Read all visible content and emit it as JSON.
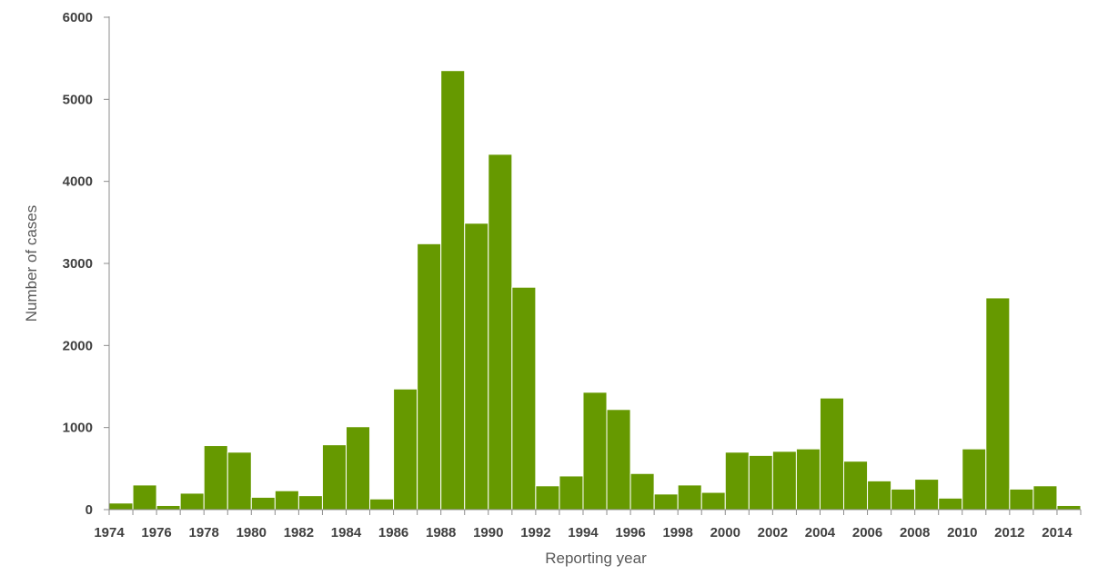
{
  "chart_data": {
    "type": "bar",
    "title": "",
    "xlabel": "Reporting year",
    "ylabel": "Number of cases",
    "ylim": [
      0,
      6000
    ],
    "y_ticks": [
      "0",
      "1000",
      "2000",
      "3000",
      "4000",
      "5000",
      "6000"
    ],
    "x_tick_labels": [
      "1974",
      "1976",
      "1978",
      "1980",
      "1982",
      "1984",
      "1986",
      "1988",
      "1990",
      "1992",
      "1994",
      "1996",
      "1998",
      "2000",
      "2002",
      "2004",
      "2006",
      "2008",
      "2010",
      "2012",
      "2014"
    ],
    "grid": false,
    "bar_color": "#669900",
    "categories": [
      1974,
      1975,
      1976,
      1977,
      1978,
      1979,
      1980,
      1981,
      1982,
      1983,
      1984,
      1985,
      1986,
      1987,
      1988,
      1989,
      1990,
      1991,
      1992,
      1993,
      1994,
      1995,
      1996,
      1997,
      1998,
      1999,
      2000,
      2001,
      2002,
      2003,
      2004,
      2005,
      2006,
      2007,
      2008,
      2009,
      2010,
      2011,
      2012,
      2013,
      2014
    ],
    "values": [
      80,
      300,
      50,
      200,
      780,
      700,
      150,
      230,
      170,
      790,
      1010,
      130,
      1470,
      3240,
      5350,
      3490,
      4330,
      2710,
      290,
      410,
      1430,
      1220,
      440,
      190,
      300,
      210,
      700,
      660,
      710,
      740,
      1360,
      590,
      350,
      250,
      370,
      140,
      740,
      2580,
      250,
      290,
      50
    ]
  }
}
